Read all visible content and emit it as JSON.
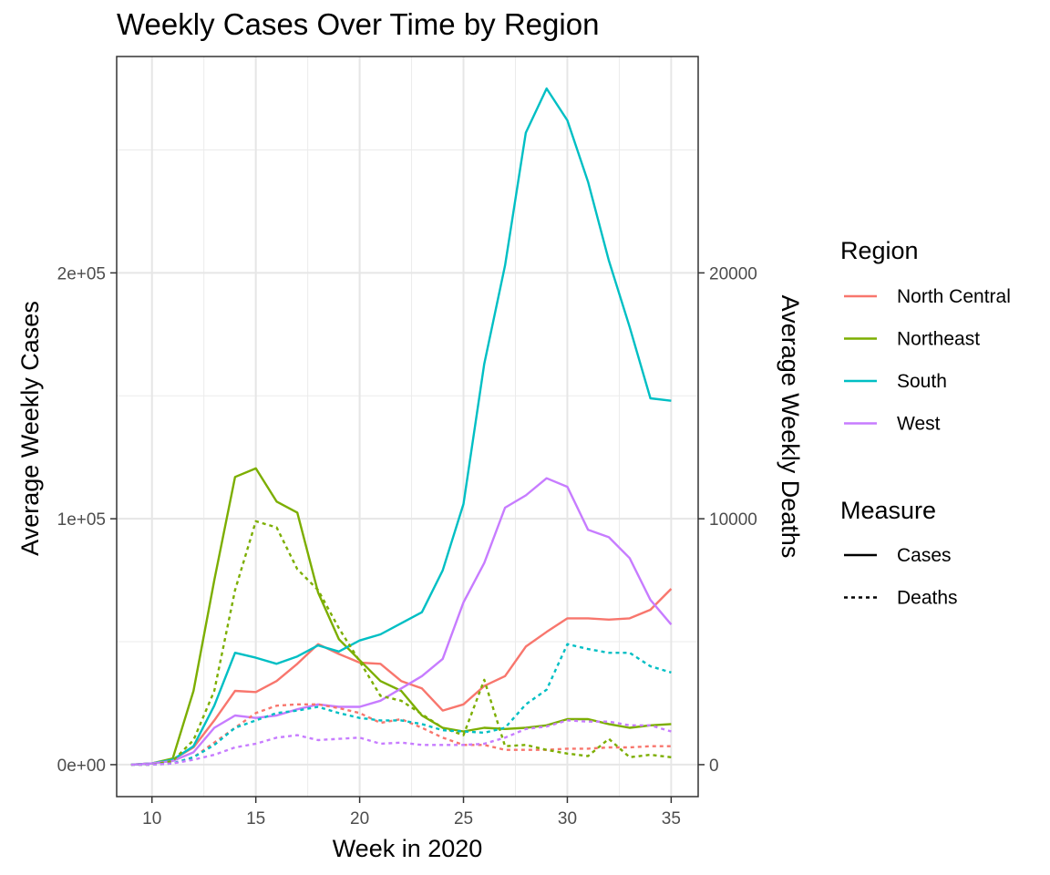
{
  "chart_data": {
    "type": "line",
    "title": "Weekly Cases Over Time by Region",
    "xlabel": "Week in 2020",
    "ylabel_left": "Average Weekly Cases",
    "ylabel_right": "Average Weekly Deaths",
    "x_ticks": [
      "10",
      "15",
      "20",
      "25",
      "30",
      "35"
    ],
    "y_left_ticks": [
      "0e+00",
      "1e+05",
      "2e+05"
    ],
    "y_right_ticks": [
      "0",
      "10000",
      "20000"
    ],
    "xlim": [
      8.3,
      36.3
    ],
    "ylim_left": [
      -13000,
      288000
    ],
    "y_left_tick_values": [
      0,
      100000,
      200000
    ],
    "y_right_tick_values": [
      0,
      10000,
      20000
    ],
    "y_right_to_left_factor": 10,
    "grid": true,
    "x": [
      9,
      10,
      11,
      12,
      13,
      14,
      15,
      16,
      17,
      18,
      19,
      20,
      21,
      22,
      23,
      24,
      25,
      26,
      27,
      28,
      29,
      30,
      31,
      32,
      33,
      34,
      35
    ],
    "legend": {
      "position": "right",
      "region_title": "Region",
      "measure_title": "Measure",
      "regions": [
        {
          "name": "North Central",
          "color": "#F8766D"
        },
        {
          "name": "Northeast",
          "color": "#7CAE00"
        },
        {
          "name": "South",
          "color": "#00BFC4"
        },
        {
          "name": "West",
          "color": "#C77CFF"
        }
      ],
      "measures": [
        {
          "name": "Cases",
          "dash": "solid"
        },
        {
          "name": "Deaths",
          "dash": "dotted"
        }
      ]
    },
    "series": [
      {
        "name": "North Central",
        "measure": "Cases",
        "color": "#F8766D",
        "axis": "left",
        "values": [
          0,
          500,
          2000,
          7000,
          18000,
          30000,
          29500,
          34000,
          41000,
          49000,
          45000,
          41500,
          41000,
          34000,
          31000,
          22000,
          24500,
          32000,
          36000,
          48000,
          54000,
          59500,
          59500,
          59000,
          59500,
          63000,
          71500
        ]
      },
      {
        "name": "Northeast",
        "measure": "Cases",
        "color": "#7CAE00",
        "axis": "left",
        "values": [
          0,
          500,
          2500,
          30000,
          75000,
          117000,
          120500,
          107000,
          102500,
          70000,
          51000,
          42500,
          34000,
          30000,
          20000,
          15000,
          13500,
          15000,
          14500,
          15000,
          16000,
          18500,
          18500,
          16500,
          15000,
          16000,
          16500
        ]
      },
      {
        "name": "South",
        "measure": "Cases",
        "color": "#00BFC4",
        "axis": "left",
        "values": [
          0,
          500,
          2000,
          7500,
          24000,
          45500,
          43500,
          41000,
          44000,
          48500,
          46000,
          50500,
          53000,
          57500,
          62000,
          79000,
          106000,
          163000,
          203000,
          257000,
          275000,
          262000,
          237000,
          205000,
          178000,
          149000,
          148000
        ]
      },
      {
        "name": "West",
        "measure": "Cases",
        "color": "#C77CFF",
        "axis": "left",
        "values": [
          0,
          500,
          1500,
          5000,
          15000,
          20000,
          19000,
          20000,
          22500,
          24500,
          23500,
          23500,
          26000,
          31000,
          36000,
          43000,
          66000,
          82000,
          104500,
          109500,
          116500,
          113000,
          95500,
          92500,
          84000,
          67000,
          57000
        ]
      },
      {
        "name": "North Central",
        "measure": "Deaths",
        "color": "#F8766D",
        "axis": "right",
        "values": [
          0,
          0,
          50,
          300,
          900,
          1500,
          2100,
          2400,
          2450,
          2450,
          2300,
          2100,
          1700,
          1850,
          1500,
          1100,
          800,
          800,
          600,
          600,
          600,
          650,
          650,
          700,
          700,
          750,
          750
        ]
      },
      {
        "name": "Northeast",
        "measure": "Deaths",
        "color": "#7CAE00",
        "axis": "right",
        "values": [
          0,
          0,
          150,
          1000,
          3000,
          7100,
          9900,
          9650,
          7950,
          7100,
          5550,
          4200,
          2800,
          2600,
          2050,
          1500,
          1200,
          3450,
          750,
          800,
          600,
          450,
          350,
          1050,
          300,
          400,
          300
        ]
      },
      {
        "name": "South",
        "measure": "Deaths",
        "color": "#00BFC4",
        "axis": "right",
        "values": [
          0,
          0,
          50,
          300,
          800,
          1500,
          1800,
          2100,
          2200,
          2350,
          2100,
          1900,
          1800,
          1800,
          1650,
          1400,
          1350,
          1300,
          1500,
          2450,
          3050,
          4900,
          4700,
          4550,
          4550,
          4000,
          3750
        ]
      },
      {
        "name": "West",
        "measure": "Deaths",
        "color": "#C77CFF",
        "axis": "right",
        "values": [
          0,
          0,
          50,
          200,
          400,
          700,
          850,
          1100,
          1200,
          1000,
          1050,
          1100,
          850,
          900,
          800,
          800,
          800,
          850,
          1100,
          1450,
          1550,
          1800,
          1750,
          1750,
          1600,
          1600,
          1350
        ]
      }
    ]
  }
}
